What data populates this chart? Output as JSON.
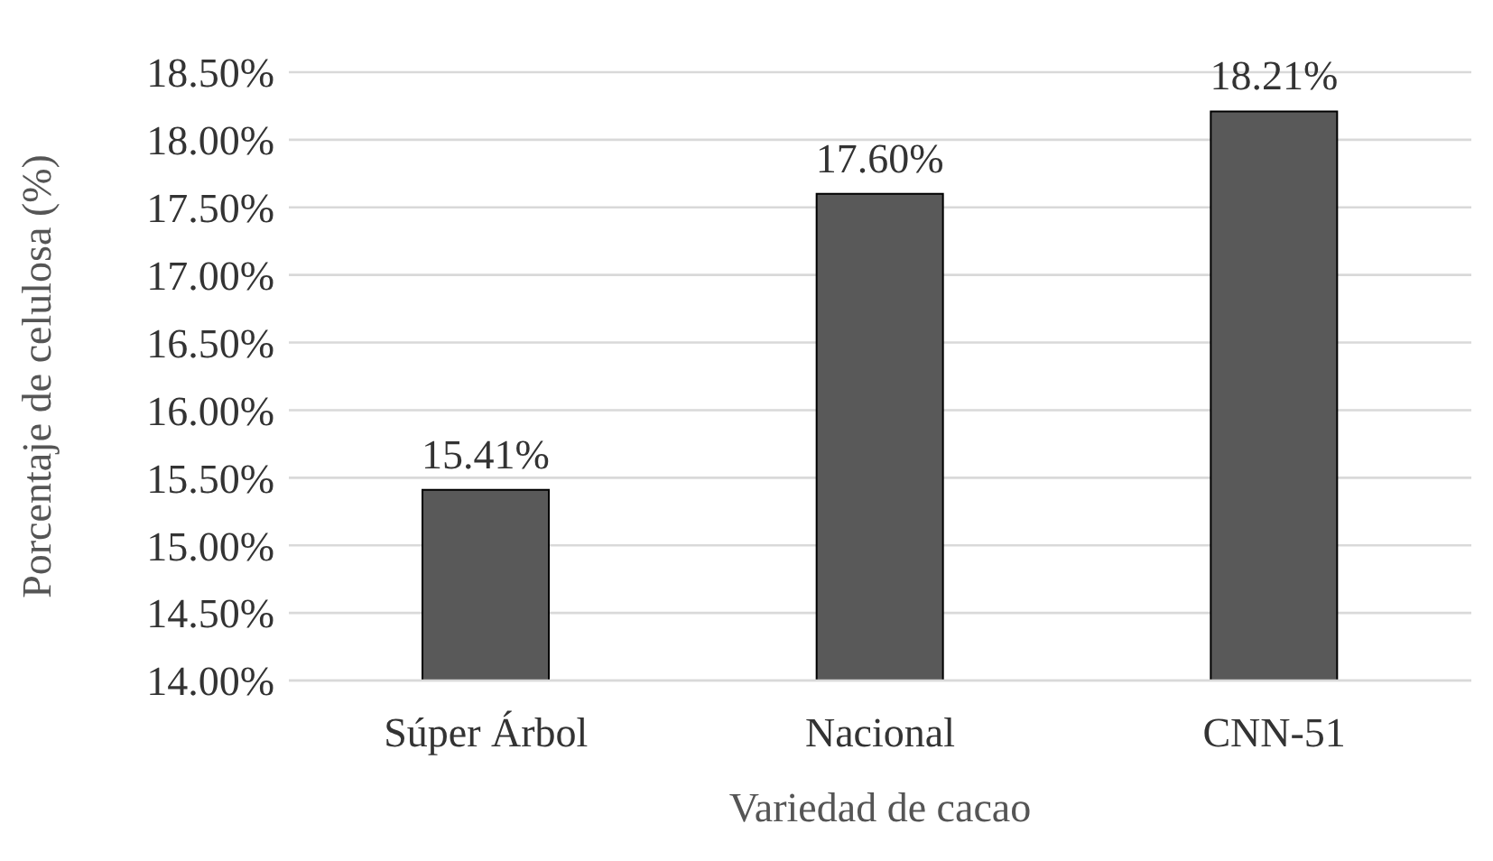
{
  "chart_data": {
    "type": "bar",
    "xlabel": "Variedad de cacao",
    "ylabel": "Porcentaje de celulosa (%)",
    "categories": [
      "Súper Árbol",
      "Nacional",
      "CNN-51"
    ],
    "values": [
      15.41,
      17.6,
      18.21
    ],
    "color": "#595959",
    "value_labels": [
      "15.41%",
      "17.60%",
      "18.21%"
    ],
    "ylim": [
      14,
      18.5
    ],
    "yticks": [
      {
        "value": 14,
        "label": "14.00%"
      },
      {
        "value": 14.5,
        "label": "14.50%"
      },
      {
        "value": 15,
        "label": "15.00%"
      },
      {
        "value": 15.5,
        "label": "15.50%"
      },
      {
        "value": 16,
        "label": "16.00%"
      },
      {
        "value": 16.5,
        "label": "16.50%"
      },
      {
        "value": 17,
        "label": "17.00%"
      },
      {
        "value": 17.5,
        "label": "17.50%"
      },
      {
        "value": 18,
        "label": "18.00%"
      },
      {
        "value": 18.5,
        "label": "18.50%"
      }
    ],
    "grid": "y",
    "legend": false
  }
}
